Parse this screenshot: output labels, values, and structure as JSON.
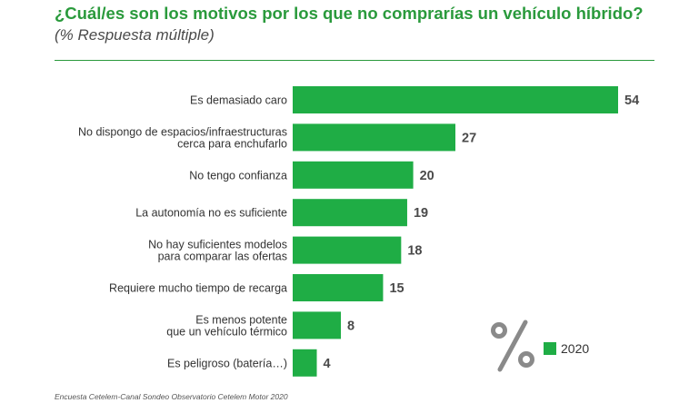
{
  "chart_data": {
    "type": "bar",
    "orientation": "horizontal",
    "title": "¿Cuál/es son los motivos por los que no comprarías un vehículo híbrido?",
    "subtitle": "(% Respuesta múltiple)",
    "categories": [
      [
        "Es demasiado caro"
      ],
      [
        "No dispongo de espacios/infraestructuras",
        "cerca para enchufarlo"
      ],
      [
        "No tengo confianza"
      ],
      [
        "La autonomía no es suficiente"
      ],
      [
        "No hay suficientes modelos",
        "para comparar las ofertas"
      ],
      [
        "Requiere mucho tiempo de recarga"
      ],
      [
        "Es menos potente",
        "que un vehículo térmico"
      ],
      [
        "Es peligroso (batería…)"
      ]
    ],
    "series": [
      {
        "name": "2020",
        "values": [
          54,
          27,
          20,
          19,
          18,
          15,
          8,
          4
        ]
      }
    ],
    "xlim": [
      0,
      54
    ],
    "legend": "bottom-right",
    "bar_color": "#1fad45"
  },
  "percent_symbol": "%",
  "source": "Encuesta Cetelem-Canal Sondeo Observatorio Cetelem Motor 2020",
  "colors": {
    "title": "#2a9a3c",
    "bar": "#1fad45",
    "icon": "#8a8a8a"
  }
}
